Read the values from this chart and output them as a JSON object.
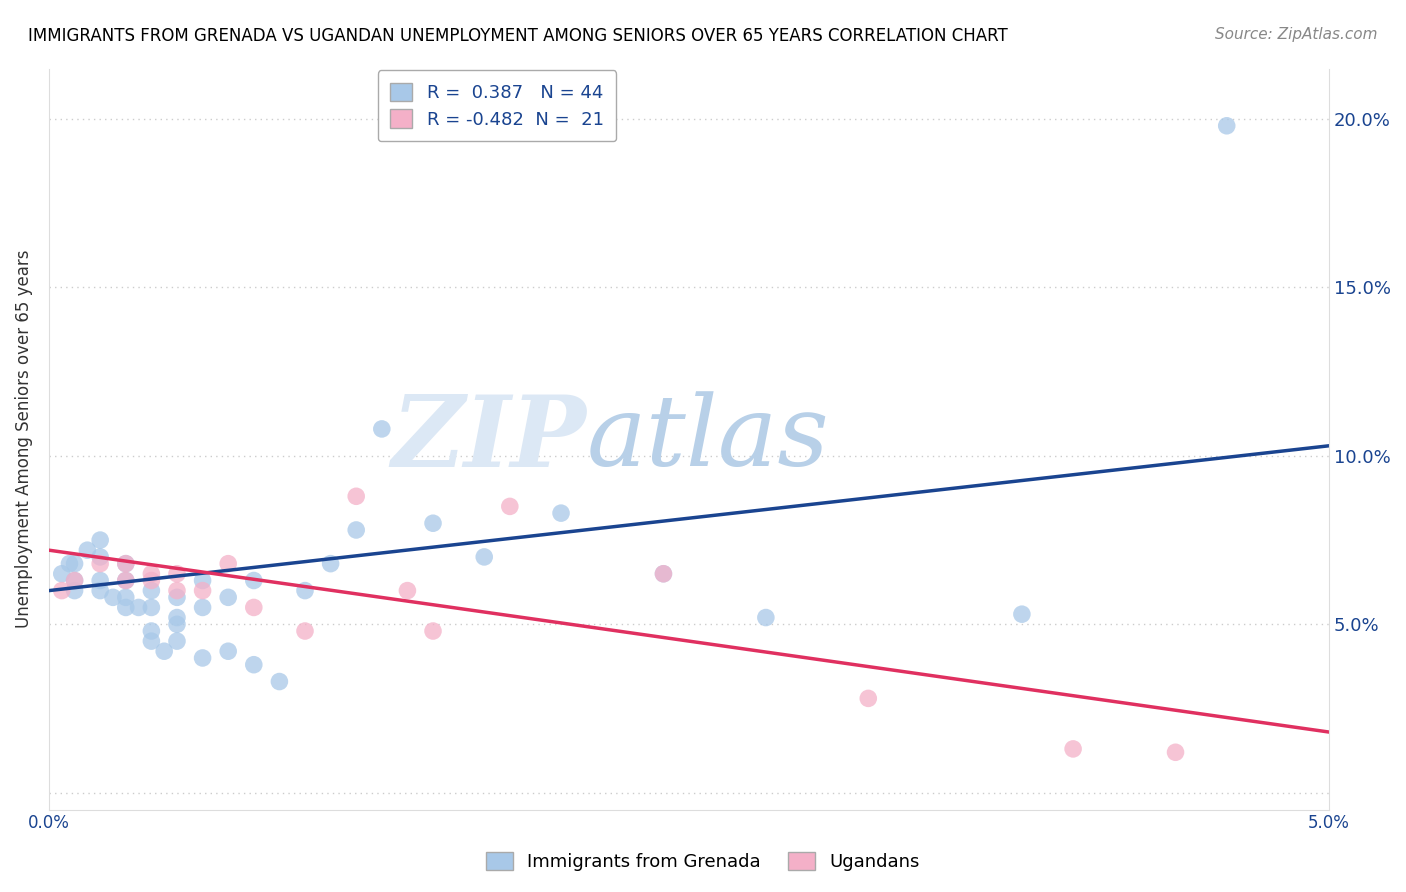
{
  "title": "IMMIGRANTS FROM GRENADA VS UGANDAN UNEMPLOYMENT AMONG SENIORS OVER 65 YEARS CORRELATION CHART",
  "source": "Source: ZipAtlas.com",
  "ylabel": "Unemployment Among Seniors over 65 years",
  "xlim": [
    0.0,
    0.05
  ],
  "ylim": [
    -0.005,
    0.215
  ],
  "yticks": [
    0.0,
    0.05,
    0.1,
    0.15,
    0.2
  ],
  "ytick_labels": [
    "",
    "5.0%",
    "10.0%",
    "15.0%",
    "20.0%"
  ],
  "R_blue": 0.387,
  "N_blue": 44,
  "R_pink": -0.482,
  "N_pink": 21,
  "blue_color": "#a8c8e8",
  "pink_color": "#f4b0c8",
  "blue_line_color": "#1a4490",
  "pink_line_color": "#e03060",
  "watermark_zip": "ZIP",
  "watermark_atlas": "atlas",
  "blue_x": [
    0.0005,
    0.0008,
    0.001,
    0.001,
    0.001,
    0.0015,
    0.002,
    0.002,
    0.002,
    0.002,
    0.0025,
    0.003,
    0.003,
    0.003,
    0.003,
    0.0035,
    0.004,
    0.004,
    0.004,
    0.004,
    0.0045,
    0.005,
    0.005,
    0.005,
    0.005,
    0.006,
    0.006,
    0.006,
    0.007,
    0.007,
    0.008,
    0.008,
    0.009,
    0.01,
    0.011,
    0.012,
    0.013,
    0.015,
    0.017,
    0.02,
    0.024,
    0.028,
    0.038,
    0.046
  ],
  "blue_y": [
    0.065,
    0.068,
    0.06,
    0.063,
    0.068,
    0.072,
    0.06,
    0.063,
    0.07,
    0.075,
    0.058,
    0.055,
    0.058,
    0.063,
    0.068,
    0.055,
    0.045,
    0.048,
    0.055,
    0.06,
    0.042,
    0.045,
    0.05,
    0.052,
    0.058,
    0.04,
    0.055,
    0.063,
    0.042,
    0.058,
    0.038,
    0.063,
    0.033,
    0.06,
    0.068,
    0.078,
    0.108,
    0.08,
    0.07,
    0.083,
    0.065,
    0.052,
    0.053,
    0.198
  ],
  "pink_x": [
    0.0005,
    0.001,
    0.002,
    0.003,
    0.003,
    0.004,
    0.004,
    0.005,
    0.005,
    0.006,
    0.007,
    0.008,
    0.01,
    0.012,
    0.014,
    0.015,
    0.018,
    0.024,
    0.032,
    0.04,
    0.044
  ],
  "pink_y": [
    0.06,
    0.063,
    0.068,
    0.063,
    0.068,
    0.063,
    0.065,
    0.06,
    0.065,
    0.06,
    0.068,
    0.055,
    0.048,
    0.088,
    0.06,
    0.048,
    0.085,
    0.065,
    0.028,
    0.013,
    0.012
  ],
  "blue_line_x0": 0.0,
  "blue_line_y0": 0.06,
  "blue_line_x1": 0.05,
  "blue_line_y1": 0.103,
  "pink_line_x0": 0.0,
  "pink_line_y0": 0.072,
  "pink_line_x1": 0.05,
  "pink_line_y1": 0.018
}
